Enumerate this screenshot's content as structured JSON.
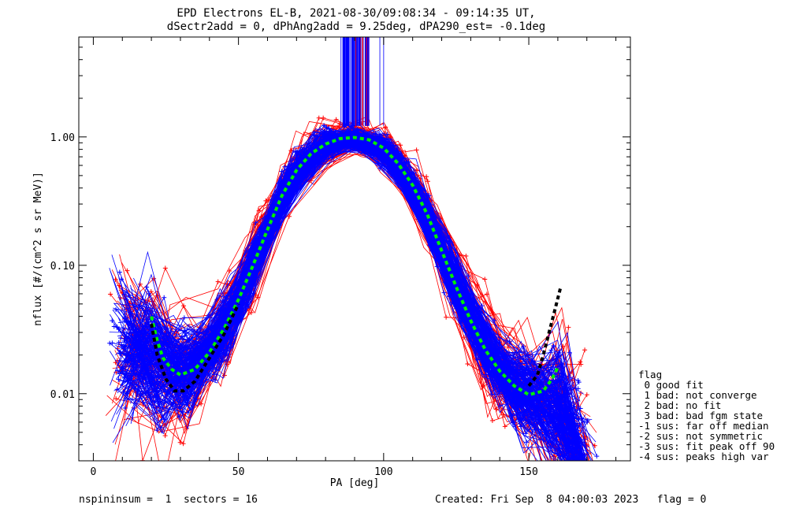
{
  "chart_data": {
    "type": "line",
    "title": "EPD Electrons EL-B, 2021-08-30/09:08:34 - 09:14:35 UT,",
    "subtitle": "dSectr2add = 0, dPhAng2add = 9.25deg, dPA290_est=  -0.1deg",
    "xlabel": "PA [deg]",
    "ylabel": "nflux [#/(cm^2 s sr MeV)]",
    "xlim": [
      -5,
      185
    ],
    "ylim": [
      0.003,
      6
    ],
    "yscale": "log",
    "xticks": [
      0,
      50,
      100,
      150
    ],
    "xtick_labels": [
      "0",
      "50",
      "100",
      "150"
    ],
    "yticks": [
      0.01,
      0.1,
      1.0
    ],
    "ytick_labels": [
      "0.01",
      "0.10",
      "1.00"
    ],
    "grid": false,
    "series": [
      {
        "color": "#00ee00",
        "style": "dashed",
        "x": [
          20,
          22,
          24,
          27,
          30,
          35,
          40,
          45,
          50,
          55,
          60,
          65,
          70,
          75,
          80,
          85,
          90,
          95,
          100,
          105,
          110,
          115,
          120,
          125,
          130,
          135,
          140,
          145,
          150,
          155,
          158,
          160
        ],
        "y": [
          0.04,
          0.026,
          0.019,
          0.0155,
          0.014,
          0.0155,
          0.021,
          0.032,
          0.054,
          0.1,
          0.19,
          0.35,
          0.55,
          0.74,
          0.88,
          0.97,
          0.99,
          0.95,
          0.82,
          0.62,
          0.42,
          0.25,
          0.13,
          0.068,
          0.037,
          0.022,
          0.015,
          0.0115,
          0.0098,
          0.0105,
          0.013,
          0.016
        ]
      },
      {
        "color": "#000000",
        "style": "dashed",
        "x": [
          20,
          22,
          25,
          28,
          31,
          35,
          40,
          45,
          50,
          150,
          153,
          155,
          157,
          159,
          161
        ],
        "y": [
          0.035,
          0.02,
          0.013,
          0.0105,
          0.0105,
          0.0125,
          0.019,
          0.029,
          0.05,
          0.0115,
          0.014,
          0.02,
          0.03,
          0.045,
          0.068
        ]
      }
    ]
  },
  "legend": {
    "title": "flag",
    "items": [
      " 0 good fit",
      " 1 bad: not converge",
      " 2 bad: no fit",
      " 3 bad: bad fgm state",
      "-1 sus: far off median",
      "-2 sus: not symmetric",
      "-3 sus: fit peak off 90",
      "-4 sus: peaks high var"
    ]
  },
  "footer": {
    "left": "nspininsum =  1  sectors = 16",
    "right": "Created: Fri Sep  8 04:00:03 2023   flag = 0"
  },
  "colors": {
    "blue_traces": "#0000ff",
    "red_traces": "#ff0000",
    "fit_green": "#00ee00",
    "fit_black": "#000000"
  }
}
